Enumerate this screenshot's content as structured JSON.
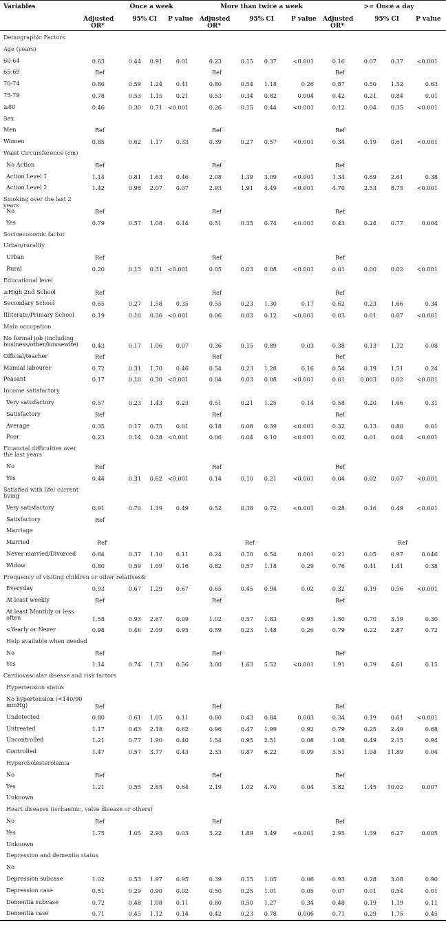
{
  "header": {
    "variables": "Variables",
    "groups": [
      "Once a week",
      "More than twice a week",
      ">= Once a day"
    ],
    "sub": {
      "aor_line1": "Adjusted",
      "aor_line2": "OR*",
      "ci": "95% CI",
      "p": "P value"
    }
  },
  "rows": [
    {
      "label": "Demographic Factors",
      "kind": "sec"
    },
    {
      "label": "Age (years)",
      "kind": "cat"
    },
    {
      "label": "60-64",
      "v": [
        "0.63",
        "0.44",
        "0.91",
        "0.01",
        "0.23",
        "0.15",
        "0.37",
        "<0.001",
        "0.16",
        "0.07",
        "0.37",
        "<0.001"
      ]
    },
    {
      "label": "65-69",
      "v": [
        "Ref",
        "",
        "",
        "",
        "Ref",
        "",
        "",
        "",
        "Ref",
        "",
        "",
        ""
      ]
    },
    {
      "label": "70-74",
      "v": [
        "0.86",
        "0.59",
        "1.24",
        "0.41",
        "0.80",
        "0.54",
        "1.18",
        "0.26",
        "0.87",
        "0.50",
        "1.52",
        "0.63"
      ]
    },
    {
      "label": "75-79",
      "v": [
        "0.78",
        "0.53",
        "1.15",
        "0.21",
        "0.53",
        "0.34",
        "0.82",
        "0.004",
        "0.42",
        "0.21",
        "0.84",
        "0.01"
      ]
    },
    {
      "label": "≥80",
      "v": [
        "0.46",
        "0.30",
        "0.71",
        "<0.001",
        "0.26",
        "0.15",
        "0.44",
        "<0.001",
        "0.12",
        "0.04",
        "0.35",
        "<0.001"
      ]
    },
    {
      "label": "Sex",
      "kind": "cat"
    },
    {
      "label": "Men",
      "v": [
        "Ref",
        "",
        "",
        "",
        "Ref",
        "",
        "",
        "",
        "Ref",
        "",
        "",
        ""
      ]
    },
    {
      "label": "Women",
      "v": [
        "0.85",
        "0.62",
        "1.17",
        "0.33",
        "0.39",
        "0.27",
        "0.57",
        "<0.001",
        "0.34",
        "0.19",
        "0.61",
        "<0.001"
      ]
    },
    {
      "label": "Waist Circumference (cm)",
      "kind": "cat"
    },
    {
      "label": "No Action",
      "ind": true,
      "v": [
        "Ref",
        "",
        "",
        "",
        "Ref",
        "",
        "",
        "",
        "Ref",
        "",
        "",
        ""
      ]
    },
    {
      "label": "Action Level 1",
      "ind": true,
      "v": [
        "1.14",
        "0.81",
        "1.63",
        "0.46",
        "2.08",
        "1.39",
        "3.09",
        "<0.001",
        "1.34",
        "0.69",
        "2.61",
        "0.38"
      ]
    },
    {
      "label": "Action Level 2",
      "ind": true,
      "v": [
        "1.42",
        "0.98",
        "2.07",
        "0.07",
        "2.93",
        "1.91",
        "4.49",
        "<0.001",
        "4.70",
        "2.53",
        "8.75",
        "<0.001"
      ]
    },
    {
      "label": "Smoking over the last 2 years",
      "kind": "cat"
    },
    {
      "label": "No",
      "ind": true,
      "v": [
        "Ref",
        "",
        "",
        "",
        "Ref",
        "",
        "",
        "",
        "Ref",
        "",
        "",
        ""
      ]
    },
    {
      "label": "Yes",
      "ind": true,
      "v": [
        "0.79",
        "0.57",
        "1.08",
        "0.14",
        "0.51",
        "0.35",
        "0.74",
        "<0.001",
        "0.43",
        "0.24",
        "0.77",
        "0.004"
      ]
    },
    {
      "label": "Socioeconomic factor",
      "kind": "sec"
    },
    {
      "label": "Urban/rurality",
      "kind": "cat"
    },
    {
      "label": "Urban",
      "ind": true,
      "v": [
        "Ref",
        "",
        "",
        "",
        "Ref",
        "",
        "",
        "",
        "Ref",
        "",
        "",
        ""
      ]
    },
    {
      "label": "Rural",
      "ind": true,
      "v": [
        "0.20",
        "0.13",
        "0.31",
        "<0.001",
        "0.05",
        "0.03",
        "0.08",
        "<0.001",
        "0.01",
        "0.00",
        "0.02",
        "<0.001"
      ]
    },
    {
      "label": "Educational level",
      "kind": "cat"
    },
    {
      "label": "≥High 2nd School",
      "v": [
        "Ref",
        "",
        "",
        "",
        "Ref",
        "",
        "",
        "",
        "Ref",
        "",
        "",
        ""
      ]
    },
    {
      "label": "Secondary School",
      "v": [
        "0.65",
        "0.27",
        "1.58",
        "0.35",
        "0.55",
        "0.23",
        "1.30",
        "0.17",
        "0.62",
        "0.23",
        "1.66",
        "0.34"
      ]
    },
    {
      "label": "Illiterate/Primary School",
      "v": [
        "0.19",
        "0.10",
        "0.36",
        "<0.001",
        "0.06",
        "0.03",
        "0.12",
        "<0.001",
        "0.03",
        "0.01",
        "0.07",
        "<0.001"
      ]
    },
    {
      "label": "Main occupation",
      "kind": "cat"
    },
    {
      "label": "No formal job (including business/other/housewife)",
      "tall": true,
      "v": [
        "0.43",
        "0.17",
        "1.06",
        "0.07",
        "0.36",
        "0.15",
        "0.89",
        "0.03",
        "0.38",
        "0.13",
        "1.12",
        "0.08"
      ]
    },
    {
      "label": "Official/teacher",
      "v": [
        "Ref",
        "",
        "",
        "",
        "Ref",
        "",
        "",
        "",
        "Ref",
        "",
        "",
        ""
      ]
    },
    {
      "label": "Manual labourer",
      "v": [
        "0.72",
        "0.31",
        "1.70",
        "0.46",
        "0.54",
        "0.23",
        "1.28",
        "0.16",
        "0.54",
        "0.19",
        "1.51",
        "0.24"
      ]
    },
    {
      "label": "Peasant",
      "v": [
        "0.17",
        "0.10",
        "0.30",
        "<0.001",
        "0.04",
        "0.03",
        "0.08",
        "<0.001",
        "0.01",
        "0.003",
        "0.02",
        "<0.001"
      ]
    },
    {
      "label": "Income satisfactory",
      "kind": "cat"
    },
    {
      "label": "Very satisfactory",
      "ind": true,
      "v": [
        "0.57",
        "0.23",
        "1.43",
        "0.23",
        "0.51",
        "0.21",
        "1.25",
        "0.14",
        "0.58",
        "0.20",
        "1.66",
        "0.31"
      ]
    },
    {
      "label": "Satisfactory",
      "ind": true,
      "v": [
        "Ref",
        "",
        "",
        "",
        "Ref",
        "",
        "",
        "",
        "Ref",
        "",
        "",
        ""
      ]
    },
    {
      "label": "Average",
      "ind": true,
      "v": [
        "0.35",
        "0.17",
        "0.75",
        "0.01",
        "0.18",
        "0.08",
        "0.39",
        "<0.001",
        "0.32",
        "0.13",
        "0.80",
        "0.01"
      ]
    },
    {
      "label": "Poor",
      "ind": true,
      "v": [
        "0.23",
        "0.14",
        "0.38",
        "<0.001",
        "0.06",
        "0.04",
        "0.10",
        "<0.001",
        "0.02",
        "0.01",
        "0.04",
        "<0.001"
      ]
    },
    {
      "label": "Financial difficulties over the last years",
      "kind": "cat",
      "tall": true
    },
    {
      "label": "No",
      "ind": true,
      "v": [
        "Ref",
        "",
        "",
        "",
        "Ref",
        "",
        "",
        "",
        "Ref",
        "",
        "",
        ""
      ]
    },
    {
      "label": "Yes",
      "ind": true,
      "v": [
        "0.44",
        "0.31",
        "0.62",
        "<0.001",
        "0.14",
        "0.10",
        "0.21",
        "<0.001",
        "0.04",
        "0.02",
        "0.07",
        "<0.001"
      ]
    },
    {
      "label": "Satisfied with life/ current living",
      "kind": "cat",
      "tall": true
    },
    {
      "label": "Very satisfactory",
      "ind": true,
      "v": [
        "0.91",
        "0.70",
        "1.19",
        "0.49",
        "0.52",
        "0.38",
        "0.72",
        "<0.001",
        "0.28",
        "0.16",
        "0.49",
        "<0.001"
      ]
    },
    {
      "label": "Satisfactory",
      "ind": true,
      "v": [
        "Ref",
        "",
        "",
        "",
        "",
        "",
        "",
        "",
        "",
        "",
        "",
        ""
      ]
    },
    {
      "label": "Marriage",
      "kind": "cat",
      "ind": true
    },
    {
      "label": "Married",
      "ind": true,
      "shift": true,
      "v": [
        "Ref",
        "",
        "",
        "",
        "Ref",
        "",
        "",
        "",
        "",
        "",
        "Ref",
        ""
      ]
    },
    {
      "label": "Never married/Divorced",
      "ind": true,
      "v": [
        "0.64",
        "0.37",
        "1.10",
        "0.11",
        "0.24",
        "0.10",
        "0.54",
        "0.001",
        "0.21",
        "0.05",
        "0.97",
        "0.046"
      ]
    },
    {
      "label": "Widow",
      "ind": true,
      "v": [
        "0.80",
        "0.59",
        "1.09",
        "0.16",
        "0.82",
        "0.57",
        "1.18",
        "0.29",
        "0.76",
        "0.41",
        "1.41",
        "0.38"
      ]
    },
    {
      "label": "Frequency of visiting children or other relatives&",
      "kind": "cat",
      "wide": true
    },
    {
      "label": "Everyday",
      "ind": true,
      "v": [
        "0.93",
        "0.67",
        "1.29",
        "0.67",
        "0.65",
        "0.45",
        "0.94",
        "0.02",
        "0.32",
        "0.19",
        "0.56",
        "<0.001"
      ]
    },
    {
      "label": "At least weekly",
      "ind": true,
      "v": [
        "Ref",
        "",
        "",
        "",
        "Ref",
        "",
        "",
        "",
        "Ref",
        "",
        "",
        ""
      ]
    },
    {
      "label": "At least Monthly or less often",
      "ind": true,
      "tall": true,
      "v": [
        "1.58",
        "0.93",
        "2.67",
        "0.09",
        "1.02",
        "0.57",
        "1.83",
        "0.95",
        "1.50",
        "0.70",
        "3.19",
        "0.30"
      ]
    },
    {
      "label": "<Yearly or Never",
      "ind": true,
      "v": [
        "0.98",
        "0.46",
        "2.09",
        "0.95",
        "0.59",
        "0.23",
        "1.48",
        "0.26",
        "0.79",
        "0.22",
        "2.87",
        "0.72"
      ]
    },
    {
      "label": "Help available when needed",
      "kind": "cat",
      "ind": true
    },
    {
      "label": "No",
      "ind": true,
      "v": [
        "Ref",
        "",
        "",
        "",
        "Ref",
        "",
        "",
        "",
        "Ref",
        "",
        "",
        ""
      ]
    },
    {
      "label": "Yes",
      "ind": true,
      "v": [
        "1.14",
        "0.74",
        "1.73",
        "0.56",
        "3.00",
        "1.63",
        "5.52",
        "<0.001",
        "1.91",
        "0.79",
        "4.61",
        "0.15"
      ]
    },
    {
      "label": "Cardiovascular disease and risk factors",
      "kind": "sec",
      "wide": true
    },
    {
      "label": "Hypertension status",
      "kind": "cat",
      "ind": true
    },
    {
      "label": "No hypertension (<140/90 mmHg)",
      "ind": true,
      "tall": true,
      "v": [
        "Ref",
        "",
        "",
        "",
        "Ref",
        "",
        "",
        "",
        "Ref",
        "",
        "",
        ""
      ]
    },
    {
      "label": "Undetected",
      "ind": true,
      "v": [
        "0.80",
        "0.61",
        "1.05",
        "0.11",
        "0.60",
        "0.43",
        "0.84",
        "0.003",
        "0.34",
        "0.19",
        "0.61",
        "<0.001"
      ]
    },
    {
      "label": "Untreated",
      "ind": true,
      "v": [
        "1.17",
        "0.63",
        "2.18",
        "0.62",
        "0.96",
        "0.47",
        "1.99",
        "0.92",
        "0.79",
        "0.25",
        "2.49",
        "0.68"
      ]
    },
    {
      "label": "Uncontrolled",
      "ind": true,
      "v": [
        "1.21",
        "0.77",
        "1.90",
        "0.40",
        "1.54",
        "0.95",
        "2.51",
        "0.08",
        "1.08",
        "0.49",
        "2.15",
        "0.94"
      ]
    },
    {
      "label": "Controlled",
      "ind": true,
      "v": [
        "1.47",
        "0.57",
        "3.77",
        "0.43",
        "2.33",
        "0.87",
        "6.22",
        "0.09",
        "3.51",
        "1.04",
        "11.89",
        "0.04"
      ]
    },
    {
      "label": "Hypercholesterolemia",
      "kind": "cat",
      "ind": true
    },
    {
      "label": "No",
      "ind": true,
      "v": [
        "Ref",
        "",
        "",
        "",
        "Ref",
        "",
        "",
        "",
        "Ref",
        "",
        "",
        ""
      ]
    },
    {
      "label": "Yes",
      "ind": true,
      "v": [
        "1.21",
        "0.55",
        "2.65",
        "0.64",
        "2.19",
        "1.02",
        "4.70",
        "0.04",
        "3.82",
        "1.45",
        "10.02",
        "0.007"
      ]
    },
    {
      "label": "Unknown",
      "ind": true
    },
    {
      "label": "Heart diseases (ischaemic, valve disease or others)",
      "kind": "cat",
      "ind": true,
      "wide": true
    },
    {
      "label": "No",
      "ind": true,
      "v": [
        "Ref",
        "",
        "",
        "",
        "Ref",
        "",
        "",
        "",
        "Ref",
        "",
        "",
        ""
      ]
    },
    {
      "label": "Yes",
      "ind": true,
      "v": [
        "1.75",
        "1.05",
        "2.93",
        "0.03",
        "3.22",
        "1.89",
        "5.49",
        "<0.001",
        "2.95",
        "1.39",
        "6.27",
        "0.005"
      ]
    },
    {
      "label": "Unknown",
      "ind": true
    },
    {
      "label": "Depression and dementia status",
      "kind": "cat",
      "ind": true,
      "wide": true
    },
    {
      "label": "No",
      "ind": true
    },
    {
      "label": "Depression subcase",
      "ind": true,
      "v": [
        "1.02",
        "0.53",
        "1.97",
        "0.95",
        "0.39",
        "0.15",
        "1.05",
        "0.06",
        "0.93",
        "0.28",
        "3.08",
        "0.90"
      ]
    },
    {
      "label": "Depression case",
      "ind": true,
      "v": [
        "0.51",
        "0.29",
        "0.90",
        "0.02",
        "0.50",
        "0.25",
        "1.01",
        "0.05",
        "0.07",
        "0.01",
        "0.54",
        "0.01"
      ]
    },
    {
      "label": "Dementia subcase",
      "ind": true,
      "v": [
        "0.72",
        "0.48",
        "1.08",
        "0.11",
        "0.80",
        "0.50",
        "1.27",
        "0.34",
        "0.48",
        "0.19",
        "1.19",
        "0.11"
      ]
    },
    {
      "label": "Dementia case",
      "ind": true,
      "v": [
        "0.71",
        "0.45",
        "1.12",
        "0.14",
        "0.42",
        "0.23",
        "0.78",
        "0.006",
        "0.71",
        "0.29",
        "1.75",
        "0.45"
      ]
    }
  ]
}
